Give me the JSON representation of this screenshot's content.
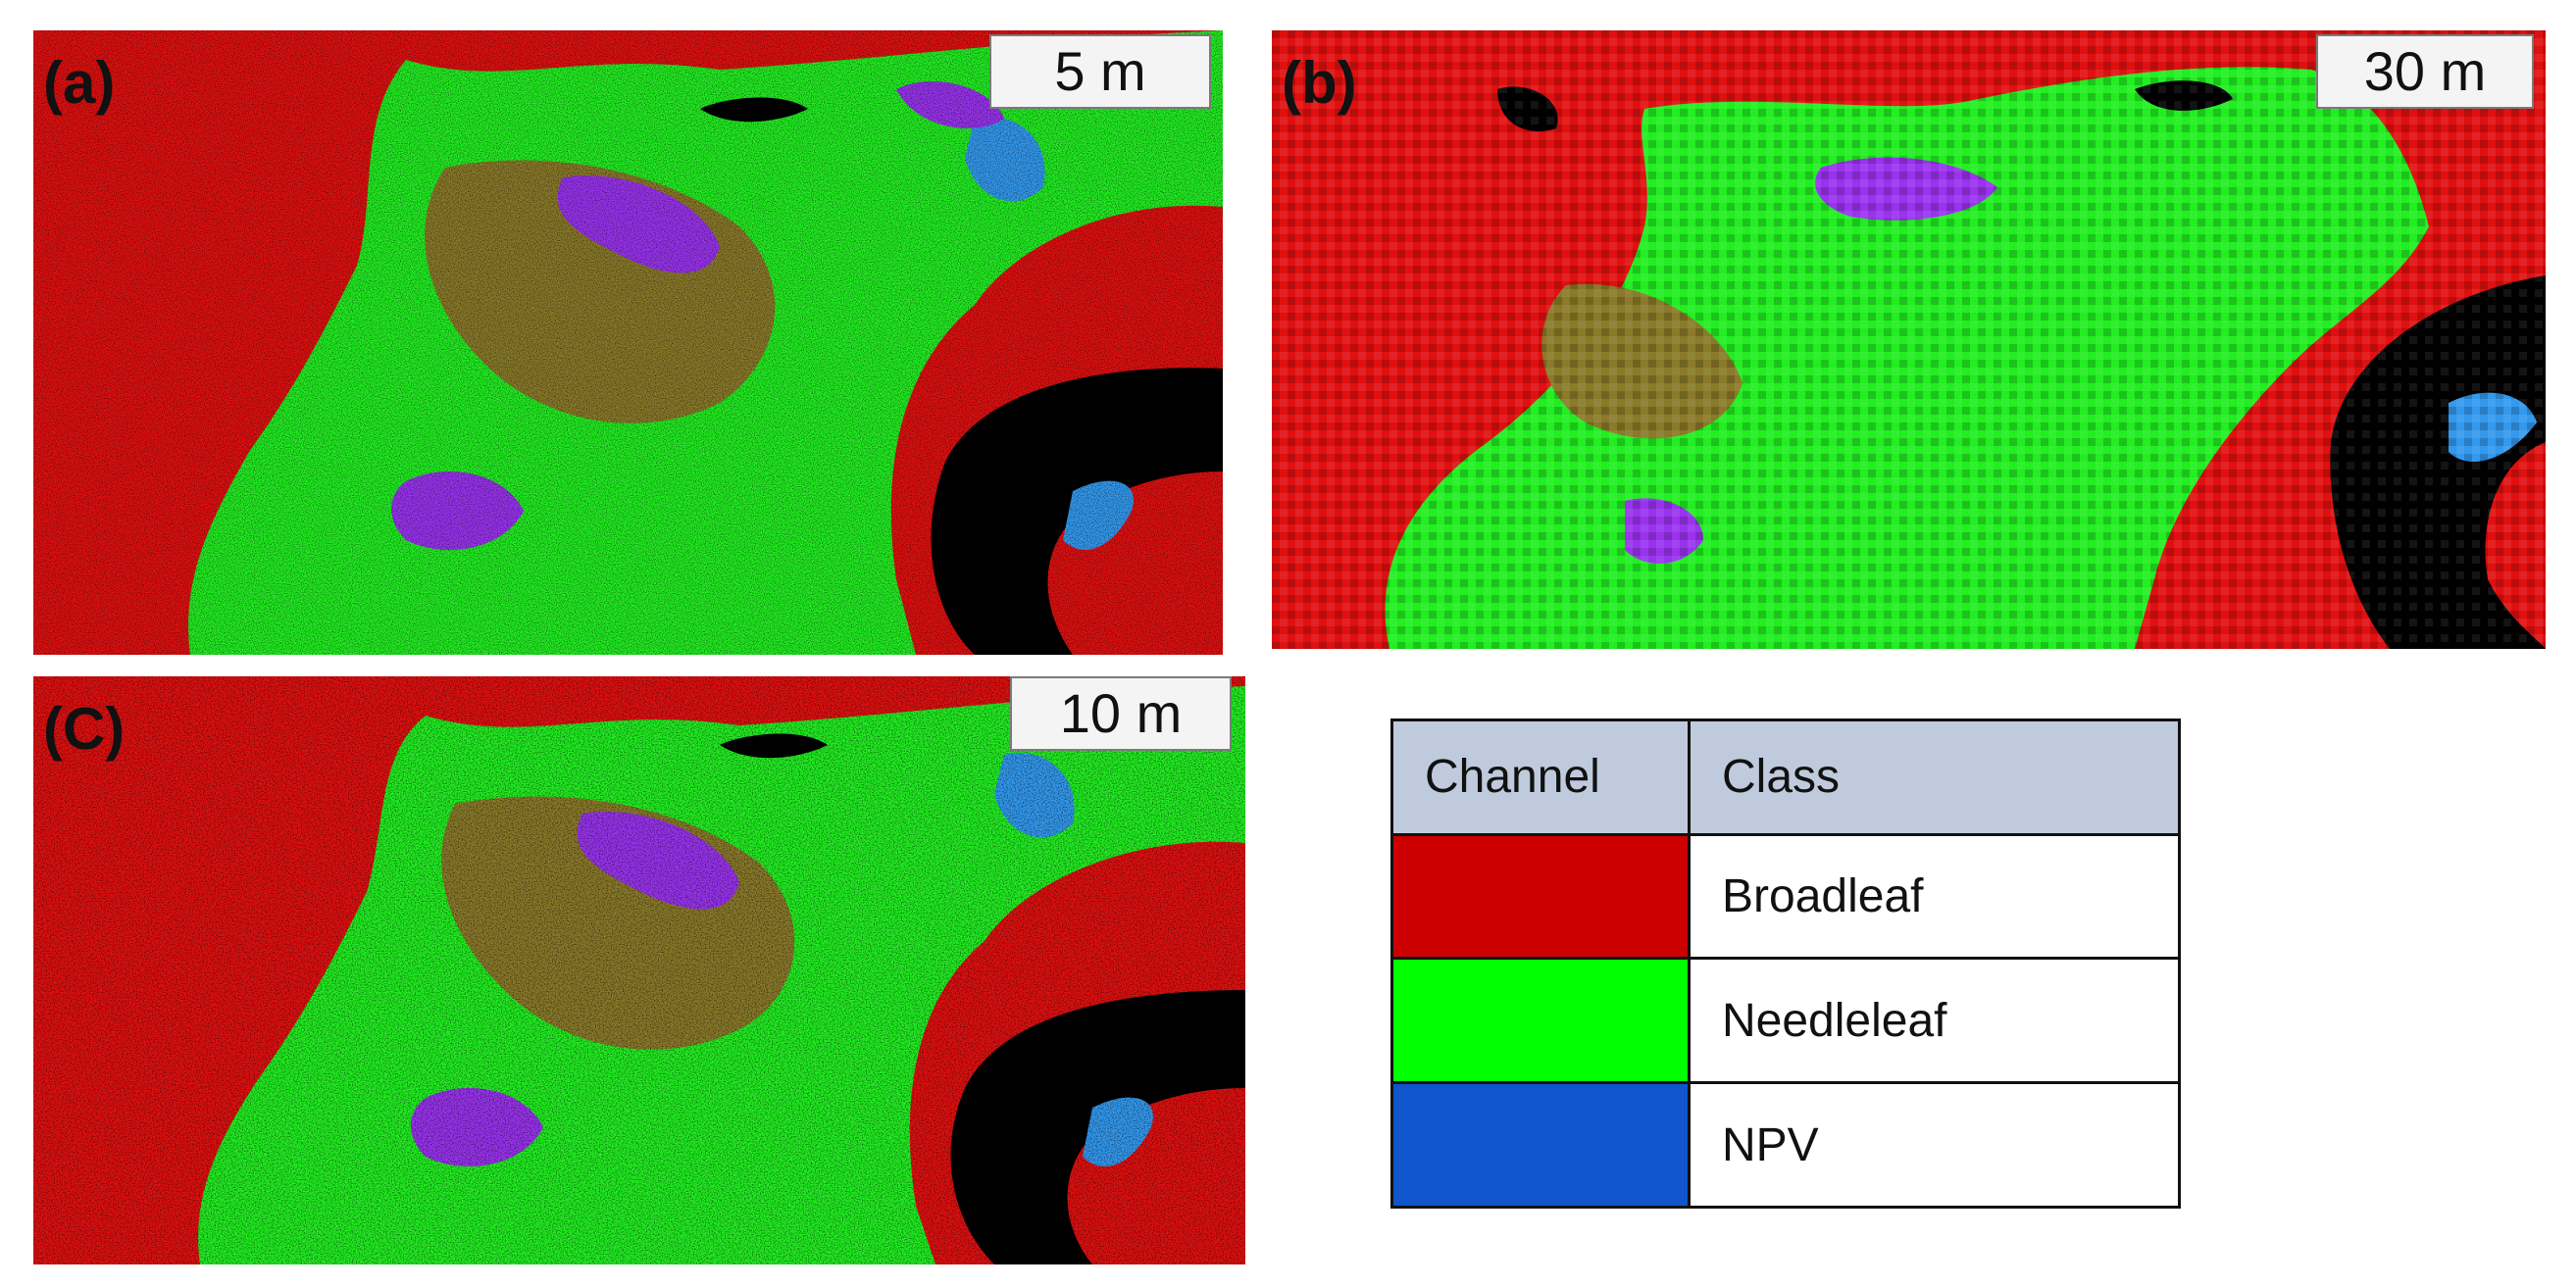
{
  "panels": [
    {
      "id": "a",
      "label": "(a)",
      "scale": "5 m"
    },
    {
      "id": "b",
      "label": "(b)",
      "scale": "30 m"
    },
    {
      "id": "c",
      "label": "(C)",
      "scale": "10 m"
    }
  ],
  "legend": {
    "headers": {
      "channel": "Channel",
      "class": "Class"
    },
    "rows": [
      {
        "class": "Broadleaf",
        "color": "#cc0000"
      },
      {
        "class": "Needleleaf",
        "color": "#00ff00"
      },
      {
        "class": "NPV",
        "color": "#1155cc"
      }
    ]
  },
  "map_colors": {
    "broadleaf": "#e01010",
    "needleleaf": "#22ee22",
    "mixed": "#8a7a2a",
    "npv_purple": "#9933ee",
    "npv_blue": "#3399ee",
    "water": "#000000"
  }
}
